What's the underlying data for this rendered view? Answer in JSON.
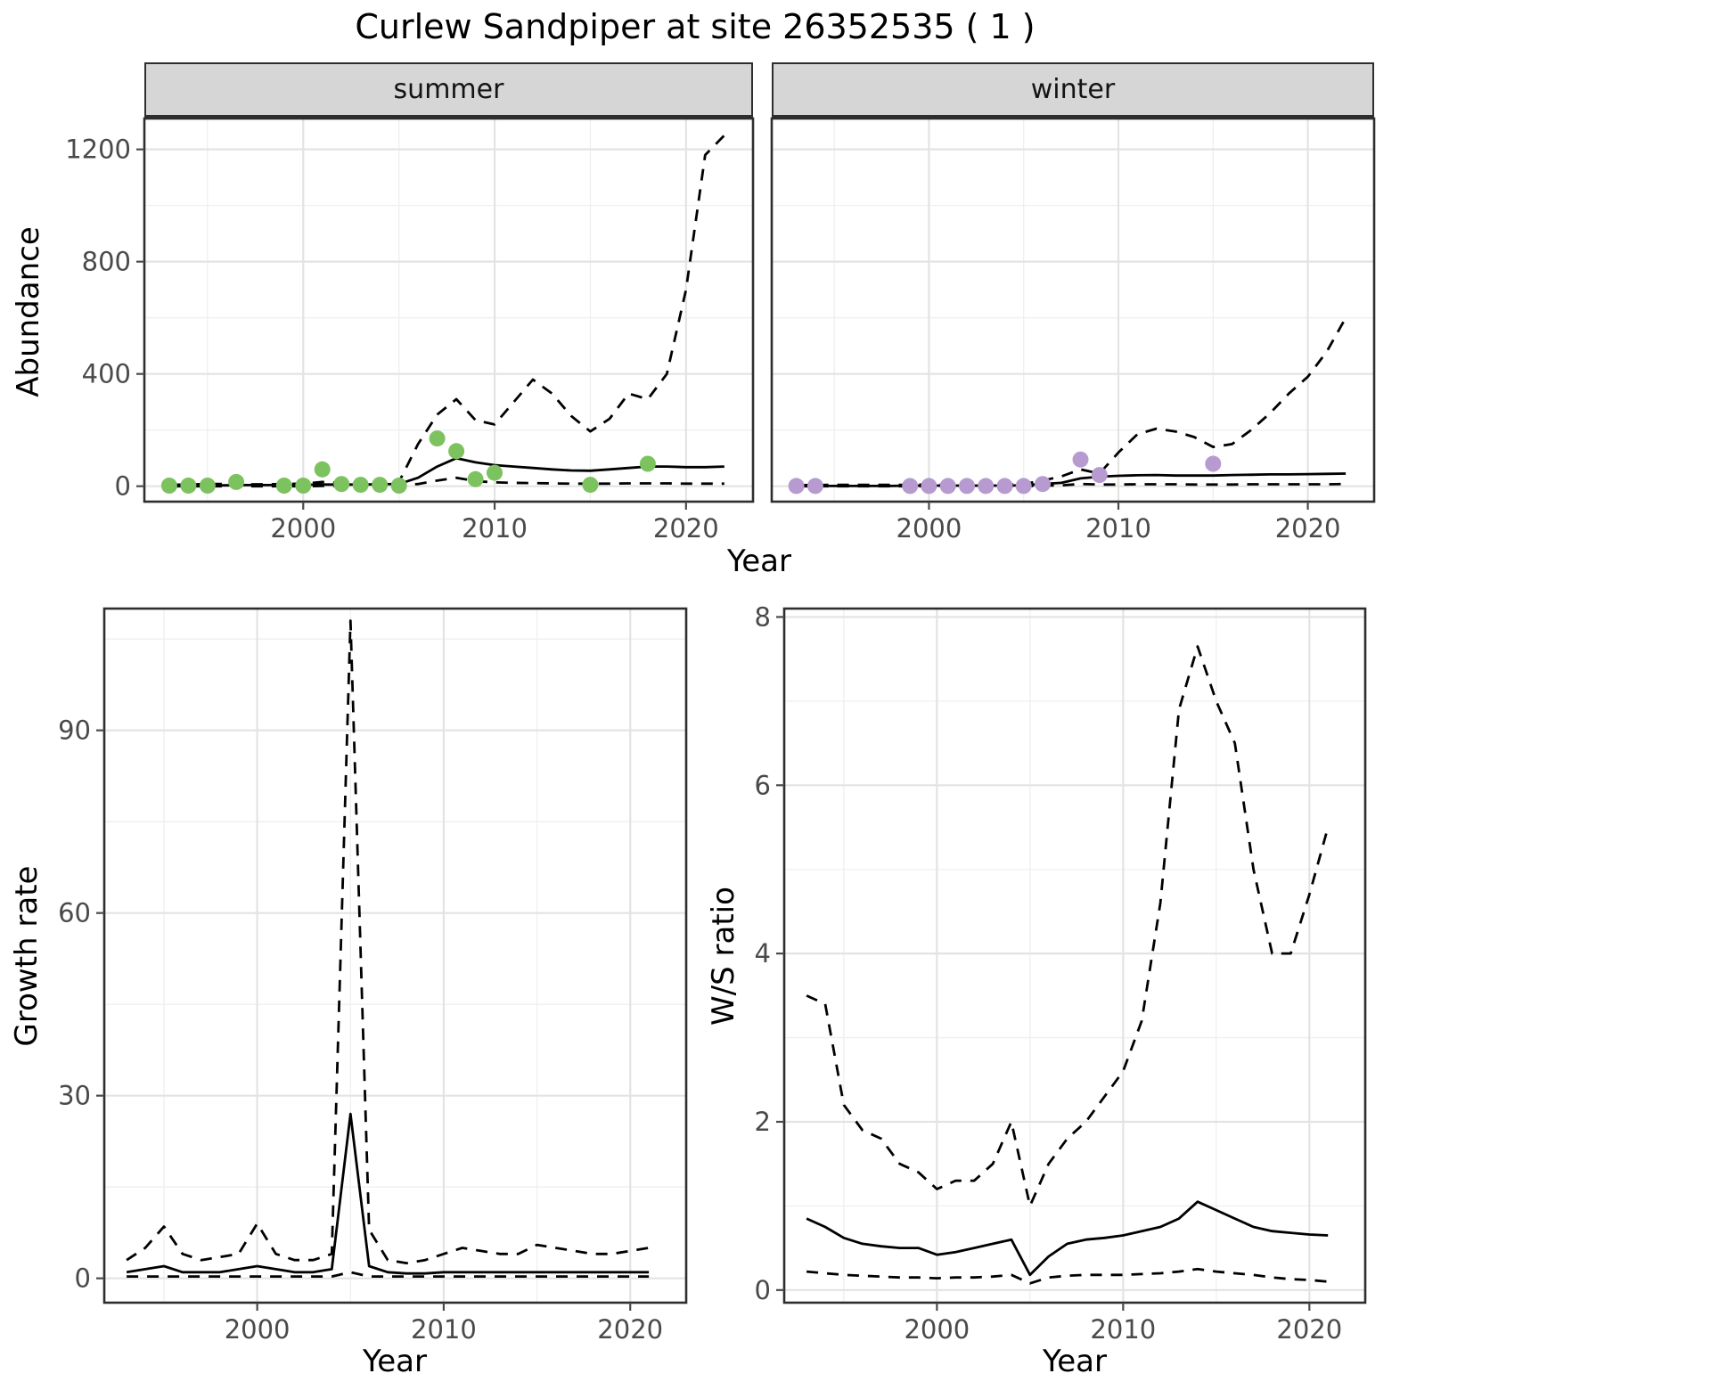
{
  "title": "Curlew Sandpiper at site 26352535 ( 1 )",
  "colors": {
    "summer_points": "#7cc25e",
    "winter_points": "#b79bd0",
    "line": "#000000",
    "grid_major": "#e3e3e3",
    "grid_minor": "#efefef",
    "strip_bg": "#d6d6d6",
    "panel_border": "#2e2e2e",
    "tick": "#4a4a4a",
    "tick_label": "#4a4a4a"
  },
  "chart_data": [
    {
      "id": "summer_abundance",
      "type": "line",
      "facet_label": "summer",
      "xlabel": "Year",
      "ylabel": "Abundance",
      "xlim": [
        1991.7,
        2023.5
      ],
      "ylim": [
        -55,
        1310
      ],
      "xticks": [
        2000,
        2010,
        2020
      ],
      "x_minor": [
        1995,
        2005,
        2015
      ],
      "yticks": [
        0,
        400,
        800,
        1200
      ],
      "y_minor": [
        200,
        600,
        1000
      ],
      "series": [
        {
          "name": "lower-ci",
          "style": "dashed",
          "x": [
            1993,
            1994,
            1995,
            1996,
            1997,
            1998,
            1999,
            2000,
            2001,
            2002,
            2003,
            2004,
            2005,
            2006,
            2007,
            2008,
            2009,
            2010,
            2011,
            2012,
            2013,
            2014,
            2015,
            2016,
            2017,
            2018,
            2019,
            2020,
            2021,
            2022
          ],
          "y": [
            0,
            0,
            0,
            0,
            0,
            0,
            0,
            0,
            1,
            1,
            1,
            1,
            1,
            8,
            20,
            30,
            18,
            14,
            12,
            11,
            10,
            9,
            9,
            9,
            10,
            10,
            10,
            9,
            9,
            9
          ]
        },
        {
          "name": "upper-ci",
          "style": "dashed",
          "x": [
            1993,
            1994,
            1995,
            1996,
            1997,
            1998,
            1999,
            2000,
            2001,
            2002,
            2003,
            2004,
            2005,
            2006,
            2007,
            2008,
            2009,
            2010,
            2011,
            2012,
            2013,
            2014,
            2015,
            2016,
            2017,
            2018,
            2019,
            2020,
            2021,
            2022
          ],
          "y": [
            5,
            6,
            8,
            8,
            7,
            7,
            8,
            9,
            15,
            12,
            12,
            12,
            15,
            150,
            255,
            310,
            235,
            220,
            300,
            380,
            330,
            250,
            195,
            240,
            330,
            310,
            400,
            700,
            1180,
            1250
          ]
        },
        {
          "name": "fit",
          "style": "solid",
          "x": [
            1993,
            1994,
            1995,
            1996,
            1997,
            1998,
            1999,
            2000,
            2001,
            2002,
            2003,
            2004,
            2005,
            2006,
            2007,
            2008,
            2009,
            2010,
            2011,
            2012,
            2013,
            2014,
            2015,
            2016,
            2017,
            2018,
            2019,
            2020,
            2021,
            2022
          ],
          "y": [
            2,
            2,
            3,
            3,
            4,
            4,
            4,
            5,
            6,
            6,
            6,
            7,
            8,
            30,
            70,
            100,
            85,
            75,
            70,
            65,
            60,
            56,
            55,
            60,
            65,
            70,
            70,
            68,
            68,
            70
          ]
        },
        {
          "name": "observations",
          "style": "points",
          "color": "#7cc25e",
          "x": [
            1993,
            1994,
            1995,
            1996.5,
            1999,
            2000,
            2001,
            2002,
            2003,
            2004,
            2005,
            2007,
            2008,
            2009,
            2010,
            2015,
            2018
          ],
          "y": [
            2,
            2,
            2,
            15,
            2,
            2,
            60,
            8,
            5,
            5,
            2,
            170,
            125,
            25,
            48,
            5,
            80
          ]
        }
      ]
    },
    {
      "id": "winter_abundance",
      "type": "line",
      "facet_label": "winter",
      "xlabel": "Year",
      "ylabel": "Abundance",
      "xlim": [
        1991.7,
        2023.5
      ],
      "ylim": [
        -55,
        1310
      ],
      "xticks": [
        2000,
        2010,
        2020
      ],
      "x_minor": [
        1995,
        2005,
        2015
      ],
      "yticks": [
        0,
        400,
        800,
        1200
      ],
      "y_minor": [
        200,
        600,
        1000
      ],
      "series": [
        {
          "name": "lower-ci",
          "style": "dashed",
          "x": [
            1993,
            1994,
            1995,
            1996,
            1997,
            1998,
            1999,
            2000,
            2001,
            2002,
            2003,
            2004,
            2005,
            2006,
            2007,
            2008,
            2009,
            2010,
            2011,
            2012,
            2013,
            2014,
            2015,
            2016,
            2017,
            2018,
            2019,
            2020,
            2021,
            2022
          ],
          "y": [
            0,
            0,
            0,
            0,
            0,
            0,
            0,
            0,
            0,
            0,
            0,
            0,
            0,
            2,
            3,
            8,
            6,
            6,
            7,
            7,
            7,
            6,
            6,
            6,
            7,
            7,
            7,
            7,
            7,
            8
          ]
        },
        {
          "name": "upper-ci",
          "style": "dashed",
          "x": [
            1993,
            1994,
            1995,
            1996,
            1997,
            1998,
            1999,
            2000,
            2001,
            2002,
            2003,
            2004,
            2005,
            2006,
            2007,
            2008,
            2009,
            2010,
            2011,
            2012,
            2013,
            2014,
            2015,
            2016,
            2017,
            2018,
            2019,
            2020,
            2021,
            2022
          ],
          "y": [
            4,
            4,
            5,
            5,
            5,
            5,
            5,
            6,
            6,
            6,
            6,
            7,
            8,
            20,
            35,
            60,
            45,
            120,
            185,
            205,
            195,
            175,
            140,
            150,
            200,
            260,
            330,
            390,
            480,
            600
          ]
        },
        {
          "name": "fit",
          "style": "solid",
          "x": [
            1993,
            1994,
            1995,
            1996,
            1997,
            1998,
            1999,
            2000,
            2001,
            2002,
            2003,
            2004,
            2005,
            2006,
            2007,
            2008,
            2009,
            2010,
            2011,
            2012,
            2013,
            2014,
            2015,
            2016,
            2017,
            2018,
            2019,
            2020,
            2021,
            2022
          ],
          "y": [
            1,
            1,
            1,
            1,
            1,
            1,
            2,
            2,
            2,
            2,
            2,
            2,
            3,
            8,
            12,
            28,
            34,
            37,
            39,
            40,
            38,
            38,
            38,
            40,
            41,
            42,
            42,
            43,
            44,
            45
          ]
        },
        {
          "name": "observations",
          "style": "points",
          "color": "#b79bd0",
          "x": [
            1993,
            1994,
            1999,
            2000,
            2001,
            2002,
            2003,
            2004,
            2005,
            2006,
            2008,
            2009,
            2015
          ],
          "y": [
            1,
            1,
            1,
            1,
            1,
            1,
            1,
            1,
            1,
            8,
            95,
            40,
            80
          ]
        }
      ]
    },
    {
      "id": "growth_rate",
      "type": "line",
      "facet_label": "",
      "xlabel": "Year",
      "ylabel": "Growth rate",
      "xlim": [
        1991.8,
        2023.0
      ],
      "ylim": [
        -4,
        110
      ],
      "xticks": [
        2000,
        2010,
        2020
      ],
      "x_minor": [
        1995,
        2005,
        2015
      ],
      "yticks": [
        0,
        30,
        60,
        90
      ],
      "y_minor": [
        15,
        45,
        75,
        105
      ],
      "series": [
        {
          "name": "lower-ci",
          "style": "dashed",
          "x": [
            1993,
            1994,
            1995,
            1996,
            1997,
            1998,
            1999,
            2000,
            2001,
            2002,
            2003,
            2004,
            2005,
            2006,
            2007,
            2008,
            2009,
            2010,
            2011,
            2012,
            2013,
            2014,
            2015,
            2016,
            2017,
            2018,
            2019,
            2020,
            2021
          ],
          "y": [
            0.3,
            0.3,
            0.3,
            0.3,
            0.3,
            0.3,
            0.3,
            0.3,
            0.3,
            0.3,
            0.3,
            0.3,
            1,
            0.3,
            0.3,
            0.3,
            0.3,
            0.3,
            0.3,
            0.3,
            0.3,
            0.3,
            0.3,
            0.3,
            0.3,
            0.3,
            0.3,
            0.3,
            0.3
          ]
        },
        {
          "name": "upper-ci",
          "style": "dashed",
          "x": [
            1993,
            1994,
            1995,
            1996,
            1997,
            1998,
            1999,
            2000,
            2001,
            2002,
            2003,
            2004,
            2005,
            2006,
            2007,
            2008,
            2009,
            2010,
            2011,
            2012,
            2013,
            2014,
            2015,
            2016,
            2017,
            2018,
            2019,
            2020,
            2021
          ],
          "y": [
            3,
            5,
            8.5,
            4,
            3,
            3.5,
            4,
            9,
            4,
            3,
            3,
            4,
            108,
            8,
            3,
            2.5,
            3,
            4,
            5,
            4.5,
            4,
            4,
            5.5,
            5,
            4.5,
            4,
            4,
            4.5,
            5
          ]
        },
        {
          "name": "fit",
          "style": "solid",
          "x": [
            1993,
            1994,
            1995,
            1996,
            1997,
            1998,
            1999,
            2000,
            2001,
            2002,
            2003,
            2004,
            2005,
            2006,
            2007,
            2008,
            2009,
            2010,
            2011,
            2012,
            2013,
            2014,
            2015,
            2016,
            2017,
            2018,
            2019,
            2020,
            2021
          ],
          "y": [
            1,
            1.5,
            2,
            1,
            1,
            1,
            1.5,
            2,
            1.5,
            1,
            1,
            1.5,
            27,
            2,
            1,
            0.8,
            0.8,
            1,
            1,
            1,
            1,
            1,
            1,
            1,
            1,
            1,
            1,
            1,
            1
          ]
        }
      ]
    },
    {
      "id": "ws_ratio",
      "type": "line",
      "facet_label": "",
      "xlabel": "Year",
      "ylabel": "W/S ratio",
      "xlim": [
        1991.8,
        2023.0
      ],
      "ylim": [
        -0.15,
        8.1
      ],
      "xticks": [
        2000,
        2010,
        2020
      ],
      "x_minor": [
        1995,
        2005,
        2015
      ],
      "yticks": [
        0,
        2,
        4,
        6,
        8
      ],
      "y_minor": [
        1,
        3,
        5,
        7
      ],
      "series": [
        {
          "name": "lower-ci",
          "style": "dashed",
          "x": [
            1993,
            1994,
            1995,
            1996,
            1997,
            1998,
            1999,
            2000,
            2001,
            2002,
            2003,
            2004,
            2005,
            2006,
            2007,
            2008,
            2009,
            2010,
            2011,
            2012,
            2013,
            2014,
            2015,
            2016,
            2017,
            2018,
            2019,
            2020,
            2021
          ],
          "y": [
            0.22,
            0.2,
            0.18,
            0.17,
            0.16,
            0.15,
            0.15,
            0.14,
            0.15,
            0.15,
            0.16,
            0.18,
            0.08,
            0.15,
            0.17,
            0.18,
            0.18,
            0.18,
            0.19,
            0.2,
            0.22,
            0.25,
            0.22,
            0.2,
            0.18,
            0.15,
            0.13,
            0.12,
            0.1
          ]
        },
        {
          "name": "upper-ci",
          "style": "dashed",
          "x": [
            1993,
            1994,
            1995,
            1996,
            1997,
            1998,
            1999,
            2000,
            2001,
            2002,
            2003,
            2004,
            2005,
            2006,
            2007,
            2008,
            2009,
            2010,
            2011,
            2012,
            2013,
            2014,
            2015,
            2016,
            2017,
            2018,
            2019,
            2020,
            2021
          ],
          "y": [
            3.5,
            3.4,
            2.2,
            1.9,
            1.8,
            1.5,
            1.4,
            1.2,
            1.3,
            1.3,
            1.5,
            2.0,
            1.0,
            1.5,
            1.8,
            2.0,
            2.3,
            2.6,
            3.2,
            4.6,
            6.9,
            7.65,
            7.0,
            6.5,
            5.0,
            4.0,
            4.0,
            4.7,
            5.5
          ]
        },
        {
          "name": "fit",
          "style": "solid",
          "x": [
            1993,
            1994,
            1995,
            1996,
            1997,
            1998,
            1999,
            2000,
            2001,
            2002,
            2003,
            2004,
            2005,
            2006,
            2007,
            2008,
            2009,
            2010,
            2011,
            2012,
            2013,
            2014,
            2015,
            2016,
            2017,
            2018,
            2019,
            2020,
            2021
          ],
          "y": [
            0.85,
            0.75,
            0.62,
            0.55,
            0.52,
            0.5,
            0.5,
            0.42,
            0.45,
            0.5,
            0.55,
            0.6,
            0.18,
            0.4,
            0.55,
            0.6,
            0.62,
            0.65,
            0.7,
            0.75,
            0.85,
            1.05,
            0.95,
            0.85,
            0.75,
            0.7,
            0.68,
            0.66,
            0.65
          ]
        }
      ]
    }
  ]
}
